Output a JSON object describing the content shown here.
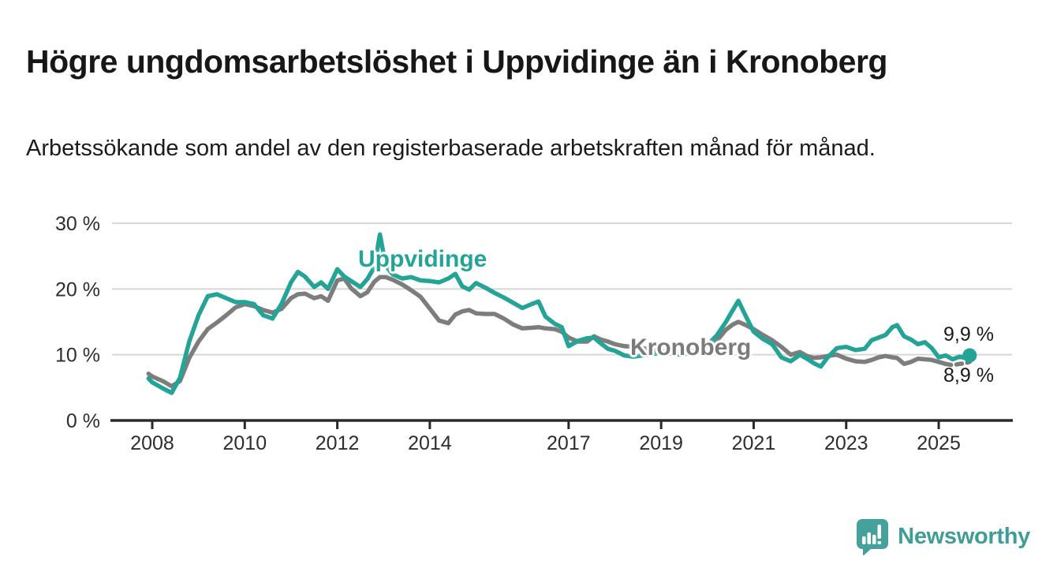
{
  "header": {
    "title": "Högre ungdomsarbetslöshet i Uppvidinge än i Kronoberg",
    "subtitle": "Arbetssökande som andel av den registerbaserade arbetskraften månad för månad."
  },
  "colors": {
    "uppvidinge_teal": "#23a496",
    "kronoberg_gray": "#7d7d7d",
    "axis_dark": "#2a2a2a",
    "gridline_gray": "#d7d7d7",
    "tick_label": "#2e2e2e",
    "logo_teal": "#46a09b",
    "logo_text_teal": "#3f9d97"
  },
  "chart_data": {
    "type": "line",
    "title": "Högre ungdomsarbetslöshet i Uppvidinge än i Kronoberg",
    "xlabel": "",
    "ylabel": "Arbetssökande som andel av den registerbaserade arbetskraften (%)",
    "ylim": [
      0,
      30
    ],
    "x_range": [
      2007.92,
      2025.67
    ],
    "grid": "horizontal",
    "legend_position": "inline-labels",
    "y_ticks": [
      {
        "value": 30,
        "label": "30 %"
      },
      {
        "value": 20,
        "label": "20 %"
      },
      {
        "value": 10,
        "label": "10 %"
      },
      {
        "value": 0,
        "label": "0 %"
      }
    ],
    "x_ticks": [
      {
        "value": 2008,
        "label": "2008"
      },
      {
        "value": 2010,
        "label": "2010"
      },
      {
        "value": 2012,
        "label": "2012"
      },
      {
        "value": 2014,
        "label": "2014"
      },
      {
        "value": 2017,
        "label": "2017"
      },
      {
        "value": 2019,
        "label": "2019"
      },
      {
        "value": 2021,
        "label": "2021"
      },
      {
        "value": 2023,
        "label": "2023"
      },
      {
        "value": 2025,
        "label": "2025"
      }
    ],
    "x": [
      2007.92,
      2008.0,
      2008.25,
      2008.42,
      2008.6,
      2008.8,
      2009.0,
      2009.2,
      2009.4,
      2009.6,
      2009.8,
      2010.0,
      2010.2,
      2010.4,
      2010.6,
      2010.8,
      2011.0,
      2011.15,
      2011.3,
      2011.5,
      2011.65,
      2011.8,
      2012.0,
      2012.15,
      2012.3,
      2012.5,
      2012.65,
      2012.8,
      2012.92,
      2013.05,
      2013.2,
      2013.4,
      2013.6,
      2013.8,
      2014.0,
      2014.2,
      2014.4,
      2014.55,
      2014.7,
      2014.85,
      2015.0,
      2015.2,
      2015.4,
      2015.6,
      2015.8,
      2016.0,
      2016.2,
      2016.35,
      2016.5,
      2016.7,
      2016.85,
      2017.0,
      2017.2,
      2017.4,
      2017.55,
      2017.7,
      2017.85,
      2018.0,
      2018.2,
      2018.4,
      2018.6,
      2018.8,
      2019.0,
      2019.2,
      2019.4,
      2019.6,
      2019.8,
      2020.0,
      2020.2,
      2020.4,
      2020.55,
      2020.67,
      2020.8,
      2021.0,
      2021.2,
      2021.4,
      2021.6,
      2021.8,
      2022.0,
      2022.15,
      2022.3,
      2022.45,
      2022.6,
      2022.8,
      2023.0,
      2023.2,
      2023.4,
      2023.55,
      2023.7,
      2023.85,
      2024.0,
      2024.1,
      2024.25,
      2024.4,
      2024.55,
      2024.7,
      2024.85,
      2025.0,
      2025.15,
      2025.3,
      2025.45,
      2025.58,
      2025.67
    ],
    "series": [
      {
        "name": "Uppvidinge",
        "color": "#23a496",
        "end_label": "9,9 %",
        "end_dot": true,
        "values": [
          6.4,
          5.8,
          4.8,
          4.2,
          6.5,
          12.0,
          16.0,
          18.9,
          19.2,
          18.6,
          18.0,
          18.0,
          17.7,
          16.0,
          15.5,
          17.8,
          21.0,
          22.6,
          21.9,
          20.3,
          21.0,
          20.0,
          23.0,
          21.9,
          21.2,
          20.3,
          21.5,
          23.3,
          28.3,
          23.5,
          22.2,
          21.6,
          21.8,
          21.3,
          21.2,
          21.0,
          21.6,
          22.3,
          20.4,
          19.9,
          20.9,
          20.2,
          19.4,
          18.7,
          17.9,
          17.1,
          17.7,
          18.1,
          15.8,
          14.7,
          14.2,
          11.3,
          12.1,
          12.5,
          12.6,
          11.7,
          10.9,
          10.6,
          9.9,
          9.7,
          9.9,
          10.1,
          10.3,
          10.2,
          10.0,
          10.2,
          10.7,
          11.5,
          12.9,
          15.0,
          16.8,
          18.2,
          16.3,
          13.5,
          12.4,
          11.6,
          9.6,
          9.0,
          10.0,
          9.4,
          8.7,
          8.2,
          9.6,
          11.0,
          11.2,
          10.7,
          10.9,
          12.2,
          12.6,
          13.0,
          14.2,
          14.5,
          12.8,
          12.3,
          11.6,
          11.9,
          11.0,
          9.6,
          9.9,
          9.3,
          9.7,
          9.5,
          9.9
        ]
      },
      {
        "name": "Kronoberg",
        "color": "#7d7d7d",
        "end_label": "8,9 %",
        "end_dot": false,
        "dashed_from": 2025.15,
        "values": [
          7.1,
          6.7,
          5.9,
          5.2,
          6.0,
          9.5,
          12.0,
          13.9,
          14.9,
          16.0,
          17.2,
          17.7,
          17.4,
          16.8,
          16.4,
          17.0,
          18.6,
          19.2,
          19.3,
          18.6,
          18.9,
          18.2,
          21.3,
          21.6,
          20.1,
          18.9,
          19.5,
          21.1,
          21.8,
          21.8,
          21.4,
          20.7,
          19.8,
          18.8,
          17.0,
          15.2,
          14.8,
          16.1,
          16.6,
          16.8,
          16.3,
          16.2,
          16.2,
          15.5,
          14.6,
          14.0,
          14.1,
          14.2,
          14.0,
          13.9,
          13.5,
          12.6,
          12.0,
          12.0,
          12.8,
          12.3,
          12.0,
          11.6,
          11.3,
          11.2,
          11.0,
          10.8,
          10.6,
          10.5,
          10.4,
          10.5,
          10.7,
          11.2,
          12.1,
          13.8,
          14.6,
          15.0,
          14.6,
          13.9,
          13.0,
          12.2,
          11.2,
          10.0,
          10.4,
          9.8,
          9.5,
          9.6,
          9.8,
          10.0,
          9.4,
          9.0,
          8.9,
          9.2,
          9.6,
          9.8,
          9.6,
          9.5,
          8.6,
          8.9,
          9.4,
          9.3,
          9.2,
          8.9,
          8.6,
          8.4,
          8.6,
          8.7,
          8.9
        ]
      }
    ],
    "annotations": [
      {
        "text": "Uppvidinge",
        "color": "#23a496"
      },
      {
        "text": "Kronoberg",
        "color": "#7b7b7b"
      }
    ]
  },
  "footer": {
    "brand": "Newsworthy"
  }
}
